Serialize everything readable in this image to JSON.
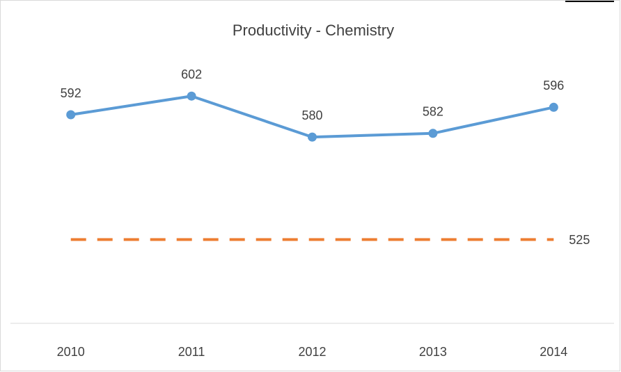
{
  "chart_data": {
    "type": "line",
    "title": "Productivity - Chemistry",
    "categories": [
      "2010",
      "2011",
      "2012",
      "2013",
      "2014"
    ],
    "series": [
      {
        "color": "#5b9bd5",
        "values": [
          592,
          602,
          580,
          582,
          596
        ]
      }
    ],
    "reference": {
      "value": 525,
      "color": "#ed7d31",
      "style": "dashed"
    },
    "ylim": [
      480,
      620
    ],
    "data_labels": true
  }
}
